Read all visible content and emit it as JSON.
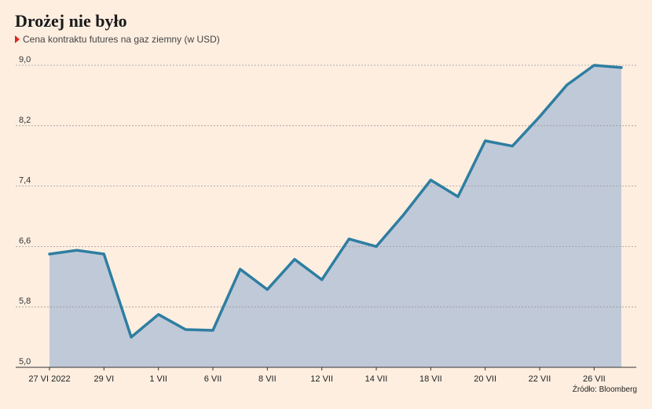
{
  "chart_data": {
    "type": "area",
    "title": "Drożej nie było",
    "subtitle": "Cena kontraktu futures na gaz ziemny (w USD)",
    "source": "Źródło: Bloomberg",
    "ylim": [
      5.0,
      9.0
    ],
    "yticks": [
      "5,0",
      "5,8",
      "6,6",
      "7,4",
      "8,2",
      "9,0"
    ],
    "ytick_values": [
      5.0,
      5.8,
      6.6,
      7.4,
      8.2,
      9.0
    ],
    "xticks": [
      "27 VI 2022",
      "29 VI",
      "1 VII",
      "6 VII",
      "8 VII",
      "12 VII",
      "14 VII",
      "18 VII",
      "20 VII",
      "22 VII",
      "26 VII"
    ],
    "grid": true,
    "series": [
      {
        "values": [
          6.5,
          6.55,
          6.5,
          5.4,
          5.7,
          5.5,
          5.49,
          6.3,
          6.03,
          6.43,
          6.16,
          6.7,
          6.6,
          7.02,
          7.48,
          7.26,
          8.0,
          7.93,
          8.32,
          8.74,
          9.0,
          8.97
        ]
      }
    ],
    "colors": {
      "line": "#2e7ea1",
      "fill": "#c0c9d8",
      "grid": "#999999"
    }
  }
}
